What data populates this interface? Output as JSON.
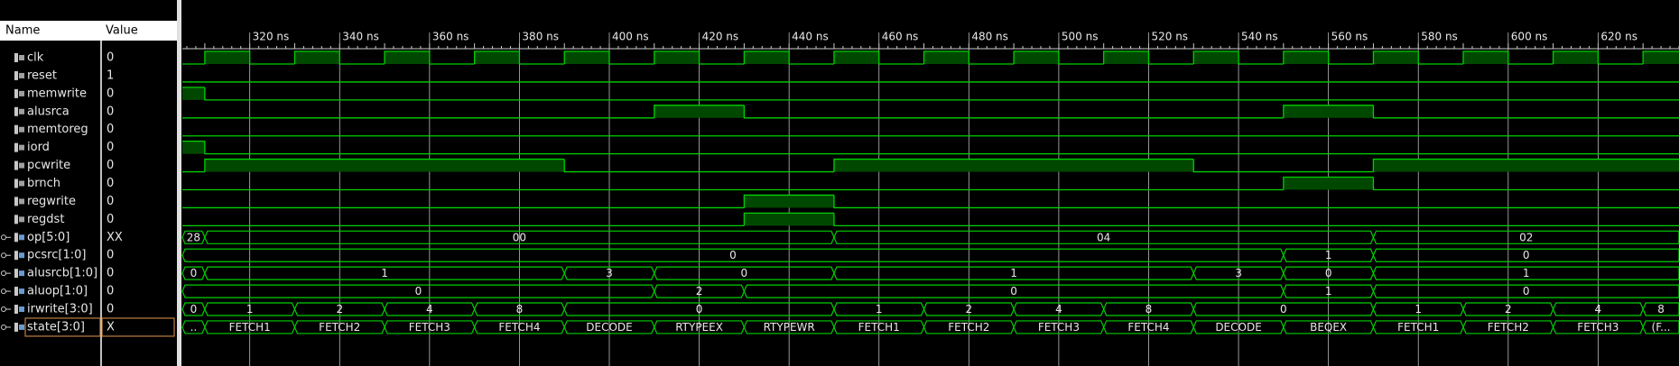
{
  "header": {
    "name": "Name",
    "value": "Value"
  },
  "timeline": {
    "xlim": [
      305,
      638
    ],
    "xticks": [
      {
        "value": 320,
        "label": "320 ns"
      },
      {
        "value": 340,
        "label": "340 ns"
      },
      {
        "value": 360,
        "label": "360 ns"
      },
      {
        "value": 380,
        "label": "380 ns"
      },
      {
        "value": 400,
        "label": "400 ns"
      },
      {
        "value": 420,
        "label": "420 ns"
      },
      {
        "value": 440,
        "label": "440 ns"
      },
      {
        "value": 460,
        "label": "460 ns"
      },
      {
        "value": 480,
        "label": "480 ns"
      },
      {
        "value": 500,
        "label": "500 ns"
      },
      {
        "value": 520,
        "label": "520 ns"
      },
      {
        "value": 540,
        "label": "540 ns"
      },
      {
        "value": 560,
        "label": "560 ns"
      },
      {
        "value": 580,
        "label": "580 ns"
      },
      {
        "value": 600,
        "label": "600 ns"
      },
      {
        "value": 620,
        "label": "620 ns"
      }
    ]
  },
  "signals": [
    {
      "name": "clk",
      "value": "0",
      "initial": 0,
      "transitions": [
        310,
        320,
        330,
        340,
        350,
        360,
        370,
        380,
        390,
        400,
        410,
        420,
        430,
        440,
        450,
        460,
        470,
        480,
        490,
        500,
        510,
        520,
        530,
        540,
        550,
        560,
        570,
        580,
        590,
        600,
        610,
        620,
        630
      ]
    },
    {
      "name": "reset",
      "value": "1",
      "initial": 0,
      "transitions": []
    },
    {
      "name": "memwrite",
      "value": "0",
      "initial": 1,
      "transitions": [
        310
      ]
    },
    {
      "name": "alusrca",
      "value": "0",
      "initial": 0,
      "transitions": [
        410,
        430,
        550,
        570
      ]
    },
    {
      "name": "memtoreg",
      "value": "0",
      "initial": 0,
      "transitions": []
    },
    {
      "name": "iord",
      "value": "0",
      "initial": 1,
      "transitions": [
        310
      ]
    },
    {
      "name": "pcwrite",
      "value": "0",
      "initial": 0,
      "transitions": [
        310,
        390,
        450,
        530,
        570
      ]
    },
    {
      "name": "brnch",
      "value": "0",
      "initial": 0,
      "transitions": [
        550,
        570
      ]
    },
    {
      "name": "regwrite",
      "value": "0",
      "initial": 0,
      "transitions": [
        430,
        450
      ]
    },
    {
      "name": "regdst",
      "value": "0",
      "initial": 0,
      "transitions": [
        430,
        450
      ]
    },
    {
      "name": "op[5:0]",
      "value": "XX",
      "segments": [
        {
          "start": 305,
          "label": "28"
        },
        {
          "start": 310,
          "label": "00"
        },
        {
          "start": 450,
          "label": "04"
        },
        {
          "start": 570,
          "label": "02"
        }
      ]
    },
    {
      "name": "pcsrc[1:0]",
      "value": "0",
      "segments": [
        {
          "start": 305,
          "label": "0"
        },
        {
          "start": 550,
          "label": "1"
        },
        {
          "start": 570,
          "label": "0"
        }
      ]
    },
    {
      "name": "alusrcb[1:0]",
      "value": "0",
      "segments": [
        {
          "start": 305,
          "label": "0"
        },
        {
          "start": 310,
          "label": "1"
        },
        {
          "start": 390,
          "label": "3"
        },
        {
          "start": 410,
          "label": "0"
        },
        {
          "start": 450,
          "label": "1"
        },
        {
          "start": 530,
          "label": "3"
        },
        {
          "start": 550,
          "label": "0"
        },
        {
          "start": 570,
          "label": "1"
        }
      ]
    },
    {
      "name": "aluop[1:0]",
      "value": "0",
      "segments": [
        {
          "start": 305,
          "label": "0"
        },
        {
          "start": 410,
          "label": "2"
        },
        {
          "start": 430,
          "label": "0"
        },
        {
          "start": 550,
          "label": "1"
        },
        {
          "start": 570,
          "label": "0"
        }
      ]
    },
    {
      "name": "irwrite[3:0]",
      "value": "0",
      "segments": [
        {
          "start": 305,
          "label": "0"
        },
        {
          "start": 310,
          "label": "1"
        },
        {
          "start": 330,
          "label": "2"
        },
        {
          "start": 350,
          "label": "4"
        },
        {
          "start": 370,
          "label": "8"
        },
        {
          "start": 390,
          "label": "0"
        },
        {
          "start": 450,
          "label": "1"
        },
        {
          "start": 470,
          "label": "2"
        },
        {
          "start": 490,
          "label": "4"
        },
        {
          "start": 510,
          "label": "8"
        },
        {
          "start": 530,
          "label": "0"
        },
        {
          "start": 570,
          "label": "1"
        },
        {
          "start": 590,
          "label": "2"
        },
        {
          "start": 610,
          "label": "4"
        },
        {
          "start": 630,
          "label": "8"
        }
      ]
    },
    {
      "name": "state[3:0]",
      "value": "X",
      "segments": [
        {
          "start": 305,
          "label": ".."
        },
        {
          "start": 310,
          "label": "FETCH1"
        },
        {
          "start": 330,
          "label": "FETCH2"
        },
        {
          "start": 350,
          "label": "FETCH3"
        },
        {
          "start": 370,
          "label": "FETCH4"
        },
        {
          "start": 390,
          "label": "DECODE"
        },
        {
          "start": 410,
          "label": "RTYPEEX"
        },
        {
          "start": 430,
          "label": "RTYPEWR"
        },
        {
          "start": 450,
          "label": "FETCH1"
        },
        {
          "start": 470,
          "label": "FETCH2"
        },
        {
          "start": 490,
          "label": "FETCH3"
        },
        {
          "start": 510,
          "label": "FETCH4"
        },
        {
          "start": 530,
          "label": "DECODE"
        },
        {
          "start": 550,
          "label": "BEQEX"
        },
        {
          "start": 570,
          "label": "FETCH1"
        },
        {
          "start": 590,
          "label": "FETCH2"
        },
        {
          "start": 610,
          "label": "FETCH3"
        },
        {
          "start": 630,
          "label": "(F..."
        }
      ]
    }
  ]
}
